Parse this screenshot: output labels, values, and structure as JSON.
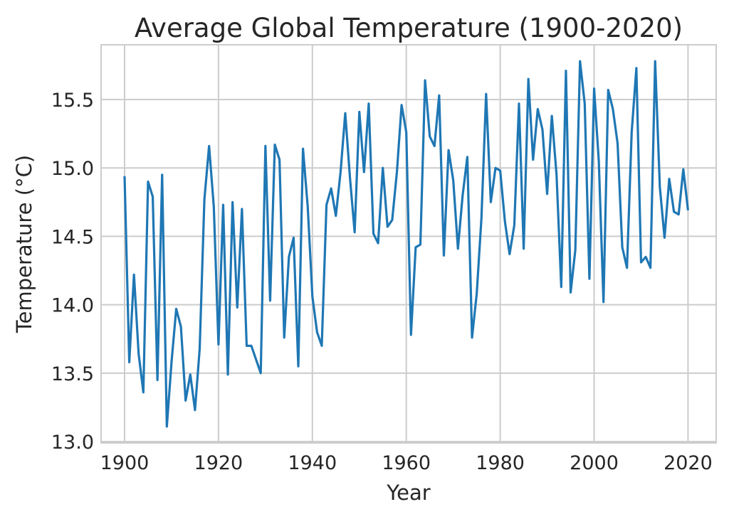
{
  "chart_data": {
    "type": "line",
    "title": "Average Global Temperature (1900-2020)",
    "xlabel": "Year",
    "ylabel": "Temperature (°C)",
    "xlim": [
      1895,
      2026
    ],
    "ylim": [
      12.99,
      15.9
    ],
    "grid": true,
    "x_ticks": [
      1900,
      1920,
      1940,
      1960,
      1980,
      2000,
      2020
    ],
    "y_ticks": [
      13.0,
      13.5,
      14.0,
      14.5,
      15.0,
      15.5
    ],
    "y_tick_labels": [
      "13.0",
      "13.5",
      "14.0",
      "14.5",
      "15.0",
      "15.5"
    ],
    "line_color": "#1f77b4",
    "series": [
      {
        "x": [
          1900,
          1901,
          1902,
          1903,
          1904,
          1905,
          1906,
          1907,
          1908,
          1909,
          1910,
          1911,
          1912,
          1913,
          1914,
          1915,
          1916,
          1917,
          1918,
          1919,
          1920,
          1921,
          1922,
          1923,
          1924,
          1925,
          1926,
          1927,
          1928,
          1929,
          1930,
          1931,
          1932,
          1933,
          1934,
          1935,
          1936,
          1937,
          1938,
          1939,
          1940,
          1941,
          1942,
          1943,
          1944,
          1945,
          1946,
          1947,
          1948,
          1949,
          1950,
          1951,
          1952,
          1953,
          1954,
          1955,
          1956,
          1957,
          1958,
          1959,
          1960,
          1961,
          1962,
          1963,
          1964,
          1965,
          1966,
          1967,
          1968,
          1969,
          1970,
          1971,
          1972,
          1973,
          1974,
          1975,
          1976,
          1977,
          1978,
          1979,
          1980,
          1981,
          1982,
          1983,
          1984,
          1985,
          1986,
          1987,
          1988,
          1989,
          1990,
          1991,
          1992,
          1993,
          1994,
          1995,
          1996,
          1997,
          1998,
          1999,
          2000,
          2001,
          2002,
          2003,
          2004,
          2005,
          2006,
          2007,
          2008,
          2009,
          2010,
          2011,
          2012,
          2013,
          2014,
          2015,
          2016,
          2017,
          2018,
          2019,
          2020
        ],
        "values": [
          14.94,
          13.58,
          14.22,
          13.64,
          13.36,
          14.9,
          14.79,
          13.45,
          14.95,
          13.11,
          13.58,
          13.97,
          13.84,
          13.3,
          13.49,
          13.23,
          13.68,
          14.77,
          15.16,
          14.72,
          13.71,
          14.73,
          13.49,
          14.75,
          13.98,
          14.7,
          13.7,
          13.7,
          13.6,
          13.5,
          15.16,
          14.03,
          15.17,
          15.06,
          13.76,
          14.35,
          14.49,
          13.55,
          15.14,
          14.72,
          14.06,
          13.8,
          13.7,
          14.73,
          14.85,
          14.65,
          14.97,
          15.4,
          14.93,
          14.53,
          15.41,
          14.97,
          15.47,
          14.52,
          14.45,
          15.0,
          14.57,
          14.62,
          14.97,
          15.46,
          15.26,
          13.78,
          14.42,
          14.44,
          15.64,
          15.23,
          15.16,
          15.53,
          14.36,
          15.13,
          14.91,
          14.41,
          14.8,
          15.08,
          13.76,
          14.08,
          14.63,
          15.54,
          14.75,
          15.0,
          14.98,
          14.61,
          14.37,
          14.58,
          15.47,
          14.41,
          15.65,
          15.06,
          15.43,
          15.28,
          14.81,
          15.38,
          14.95,
          14.13,
          15.71,
          14.09,
          14.4,
          15.78,
          15.47,
          14.19,
          15.58,
          15.05,
          14.02,
          15.57,
          15.43,
          15.18,
          14.42,
          14.27,
          15.26,
          15.73,
          14.31,
          14.35,
          14.27,
          15.78,
          14.86,
          14.49,
          14.92,
          14.68,
          14.66,
          14.99,
          14.69
        ]
      }
    ]
  }
}
